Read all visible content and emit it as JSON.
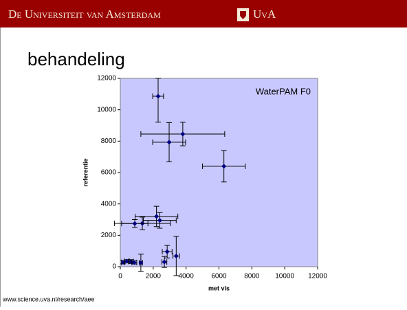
{
  "header": {
    "university": "De Universiteit van Amsterdam",
    "short": "UvA"
  },
  "slide_title": "behandeling",
  "footer": "www.science.uva.nl/research/aee",
  "chart_data": {
    "type": "scatter",
    "xlabel": "met vis",
    "ylabel": "referentie",
    "xlim": [
      0,
      12000
    ],
    "ylim": [
      0,
      12000
    ],
    "xticks": [
      0,
      2000,
      4000,
      6000,
      8000,
      10000,
      12000
    ],
    "yticks": [
      0,
      2000,
      4000,
      6000,
      8000,
      10000,
      12000
    ],
    "series": [
      {
        "name": "WaterPAM F0",
        "color": "#000080",
        "x": [
          2300,
          3800,
          2970,
          6300,
          2200,
          2400,
          1340,
          880,
          2850,
          2680,
          3400,
          1250,
          170,
          400,
          650,
          850
        ],
        "values": [
          10860,
          8450,
          7930,
          6400,
          3200,
          2950,
          2760,
          2750,
          960,
          300,
          680,
          250,
          280,
          350,
          330,
          270
        ],
        "xerr": [
          330,
          2550,
          1000,
          1300,
          1300,
          1000,
          1700,
          800,
          300,
          150,
          200,
          100,
          100,
          150,
          150,
          150
        ],
        "yerr": [
          1650,
          750,
          1250,
          1000,
          650,
          500,
          400,
          250,
          400,
          350,
          1250,
          550,
          100,
          100,
          120,
          100
        ]
      }
    ],
    "legend": "upper right"
  }
}
